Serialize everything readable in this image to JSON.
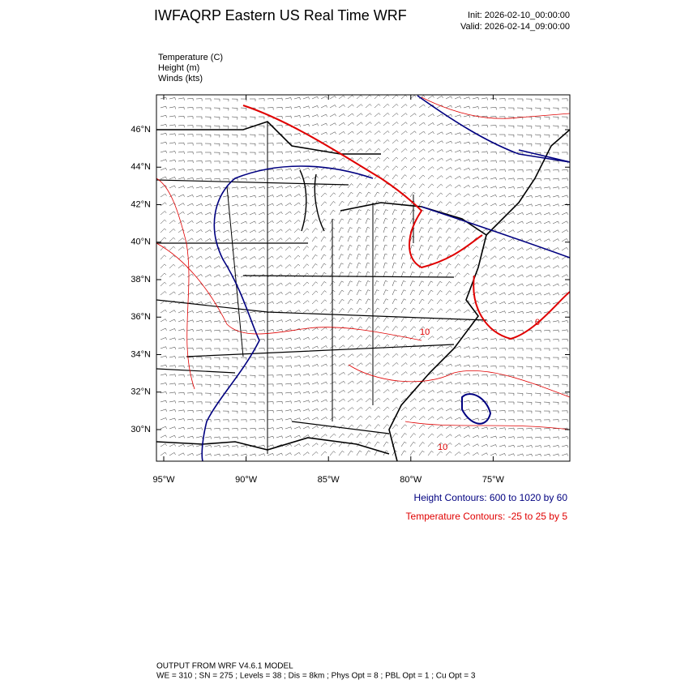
{
  "header": {
    "title": "IWFAQRP Eastern US Real Time WRF",
    "init": "Init: 2026-02-10_00:00:00",
    "valid": "Valid: 2026-02-14_09:00:00"
  },
  "fields": [
    "Temperature   (C)",
    "Height   (m)",
    "Winds   (kts)"
  ],
  "map": {
    "lat_labels": [
      "46°N",
      "44°N",
      "42°N",
      "40°N",
      "38°N",
      "36°N",
      "34°N",
      "32°N",
      "30°N"
    ],
    "lon_labels": [
      "95°W",
      "90°W",
      "85°W",
      "80°W",
      "75°W"
    ],
    "contour_labels": [
      "10",
      "10",
      "0"
    ]
  },
  "contour_notes": {
    "height": "Height Contours: 600 to 1020 by 60",
    "temperature": "Temperature Contours: -25 to 25 by 5"
  },
  "footer": {
    "line1": "OUTPUT FROM WRF V4.6.1 MODEL",
    "line2": "WE = 310 ; SN = 275 ; Levels = 38 ; Dis = 8km ; Phys Opt = 8 ; PBL Opt = 1 ; Cu Opt = 3"
  }
}
